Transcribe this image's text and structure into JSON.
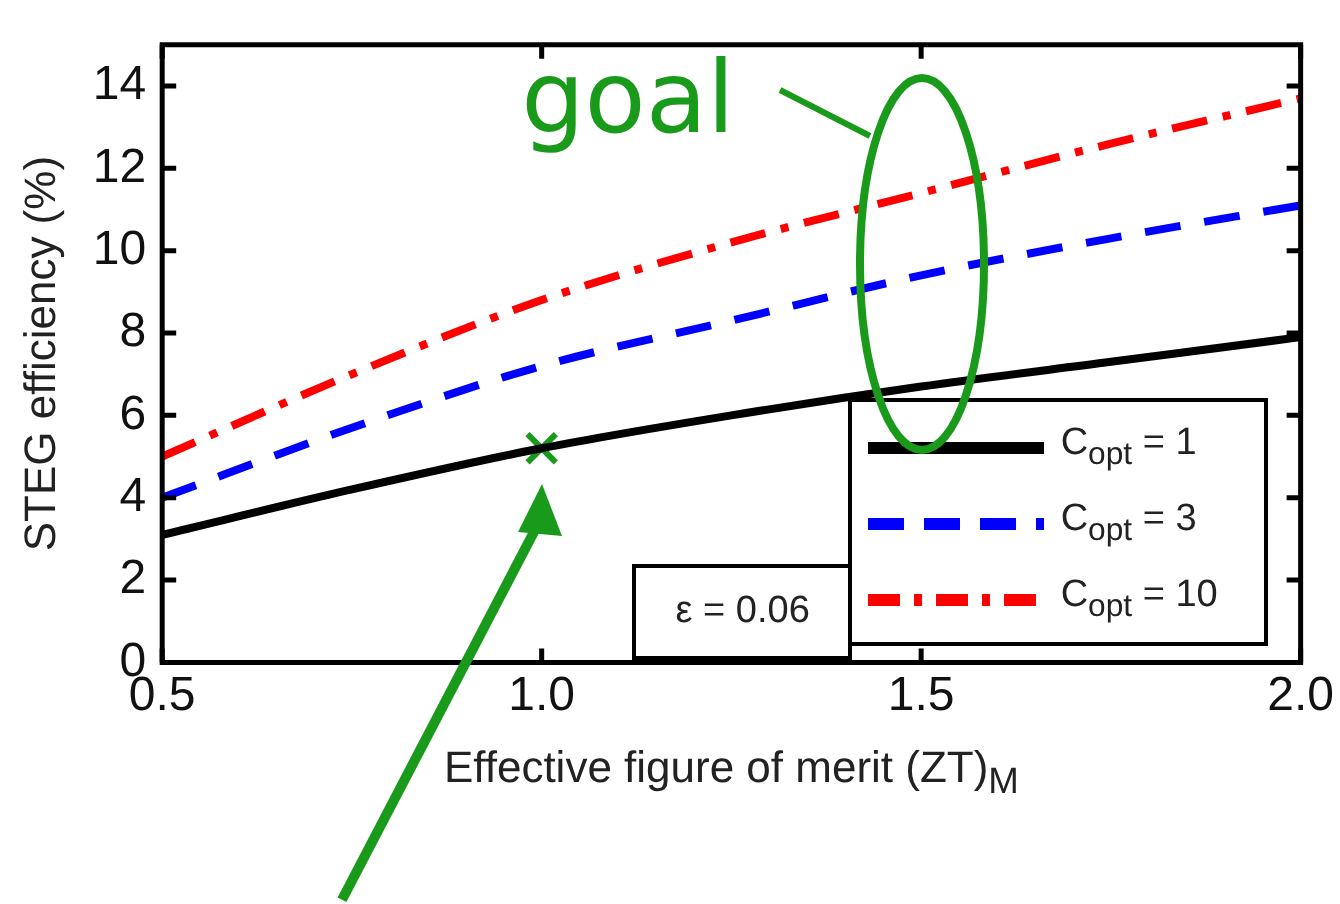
{
  "chart_data": {
    "type": "line",
    "xlabel": "Effective figure of merit (ZT)$_{M}$",
    "ylabel": "STEG efficiency (%)",
    "x": [
      0.5,
      0.75,
      1,
      1.25,
      1.5,
      1.75,
      2
    ],
    "series": [
      {
        "name": "C$_{opt}$ = 1",
        "color": "#000000",
        "line_style": "solid",
        "values": [
          3.1,
          4.2,
          5.2,
          6.0,
          6.7,
          7.3,
          7.9
        ]
      },
      {
        "name": "C$_{opt}$ = 3",
        "color": "#0000ff",
        "line_style": "dashed",
        "values": [
          4.0,
          5.7,
          7.2,
          8.3,
          9.4,
          10.3,
          11.1
        ]
      },
      {
        "name": "C$_{opt}$ = 10",
        "color": "#ff0000",
        "line_style": "dashdot",
        "values": [
          5.0,
          7.0,
          8.8,
          10.2,
          11.4,
          12.6,
          13.7
        ]
      },
      {
        "type": "scatter",
        "color": "#1a9a1a",
        "marker": "cross",
        "x": [
          1
        ],
        "values": [
          5.2
        ]
      }
    ],
    "xlim": [
      0.5,
      2
    ],
    "xticks": [
      {
        "value": 0.5,
        "label": "0.5"
      },
      {
        "value": 1,
        "label": "1.0"
      },
      {
        "value": 1.5,
        "label": "1.5"
      },
      {
        "value": 2,
        "label": "2.0"
      }
    ],
    "ylim": [
      0,
      15
    ],
    "yticks": [
      0,
      2,
      4,
      6,
      8,
      10,
      12,
      14
    ],
    "grid": false,
    "legend": "bottom right",
    "marker": "none",
    "annotations": [
      {
        "text": "goal",
        "x": 1.5,
        "y": 9.7
      },
      "ε = 0.06"
    ]
  }
}
